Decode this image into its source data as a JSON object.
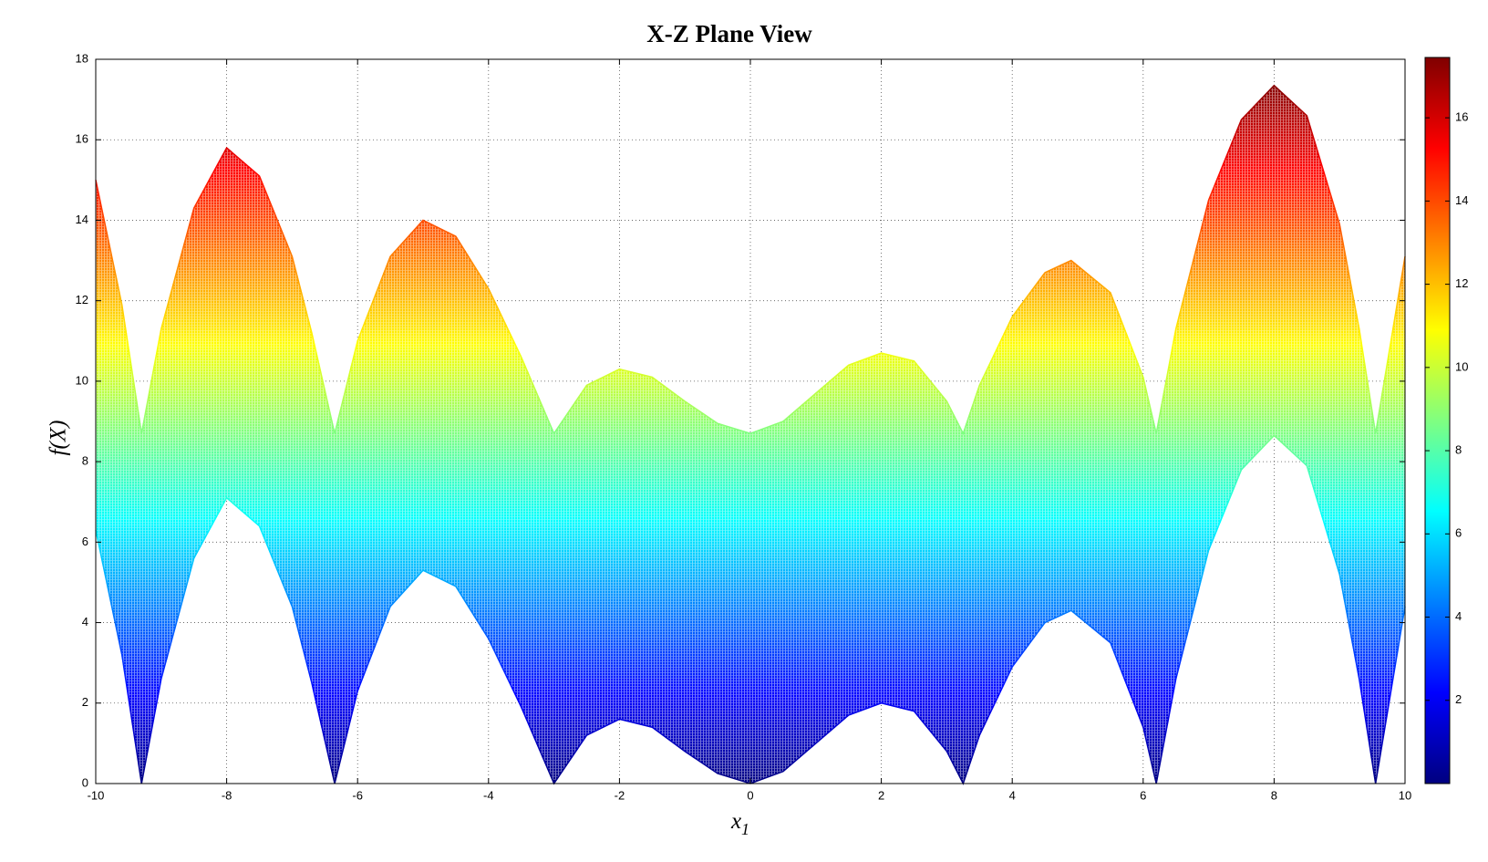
{
  "chart_data": {
    "type": "range_area",
    "title": "X-Z Plane View",
    "xlabel": "x",
    "xlabel_subscript": "1",
    "ylabel": "f(X)",
    "x": [
      -10,
      -9.6,
      -9.3,
      -9.0,
      -8.5,
      -8.0,
      -7.5,
      -7.0,
      -6.7,
      -6.35,
      -6.0,
      -5.5,
      -5.0,
      -4.5,
      -4.0,
      -3.5,
      -3.0,
      -2.5,
      -2.0,
      -1.5,
      -1.0,
      -0.5,
      0,
      0.5,
      1.0,
      1.5,
      2.0,
      2.5,
      3.0,
      3.25,
      3.5,
      4.0,
      4.5,
      4.9,
      5.5,
      6.0,
      6.2,
      6.5,
      7.0,
      7.5,
      8.0,
      8.5,
      9.0,
      9.3,
      9.55,
      10
    ],
    "series": [
      {
        "values": [
          6.3,
          3.2,
          0,
          2.6,
          5.6,
          7.1,
          6.4,
          4.4,
          2.5,
          0,
          2.3,
          4.4,
          5.3,
          4.9,
          3.6,
          1.9,
          0,
          1.2,
          1.6,
          1.4,
          0.8,
          0.25,
          0,
          0.3,
          1.0,
          1.7,
          2.0,
          1.8,
          0.8,
          0,
          1.2,
          2.9,
          4.0,
          4.3,
          3.5,
          1.4,
          0,
          2.6,
          5.8,
          7.8,
          8.65,
          7.9,
          5.2,
          2.6,
          0,
          4.4
        ]
      },
      {
        "values": [
          15.0,
          11.9,
          8.7,
          11.3,
          14.3,
          15.8,
          15.1,
          13.1,
          11.2,
          8.7,
          11.0,
          13.1,
          14.0,
          13.6,
          12.3,
          10.6,
          8.7,
          9.9,
          10.3,
          10.1,
          9.5,
          8.95,
          8.7,
          9.0,
          9.7,
          10.4,
          10.7,
          10.5,
          9.5,
          8.7,
          9.9,
          11.6,
          12.7,
          13.0,
          12.2,
          10.1,
          8.7,
          11.3,
          14.5,
          16.5,
          17.35,
          16.6,
          13.9,
          11.3,
          8.7,
          13.1
        ]
      }
    ],
    "colormap": "jet",
    "xlim": [
      -10,
      10
    ],
    "xticks": [
      -10,
      -8,
      -6,
      -4,
      -2,
      0,
      2,
      4,
      6,
      8,
      10
    ],
    "ylim": [
      0,
      18
    ],
    "yticks": [
      0,
      2,
      4,
      6,
      8,
      10,
      12,
      14,
      16,
      18
    ],
    "grid": true,
    "colorbar": {
      "lim": [
        0,
        17.45
      ],
      "ticks": [
        2,
        4,
        6,
        8,
        10,
        12,
        14,
        16
      ]
    }
  }
}
